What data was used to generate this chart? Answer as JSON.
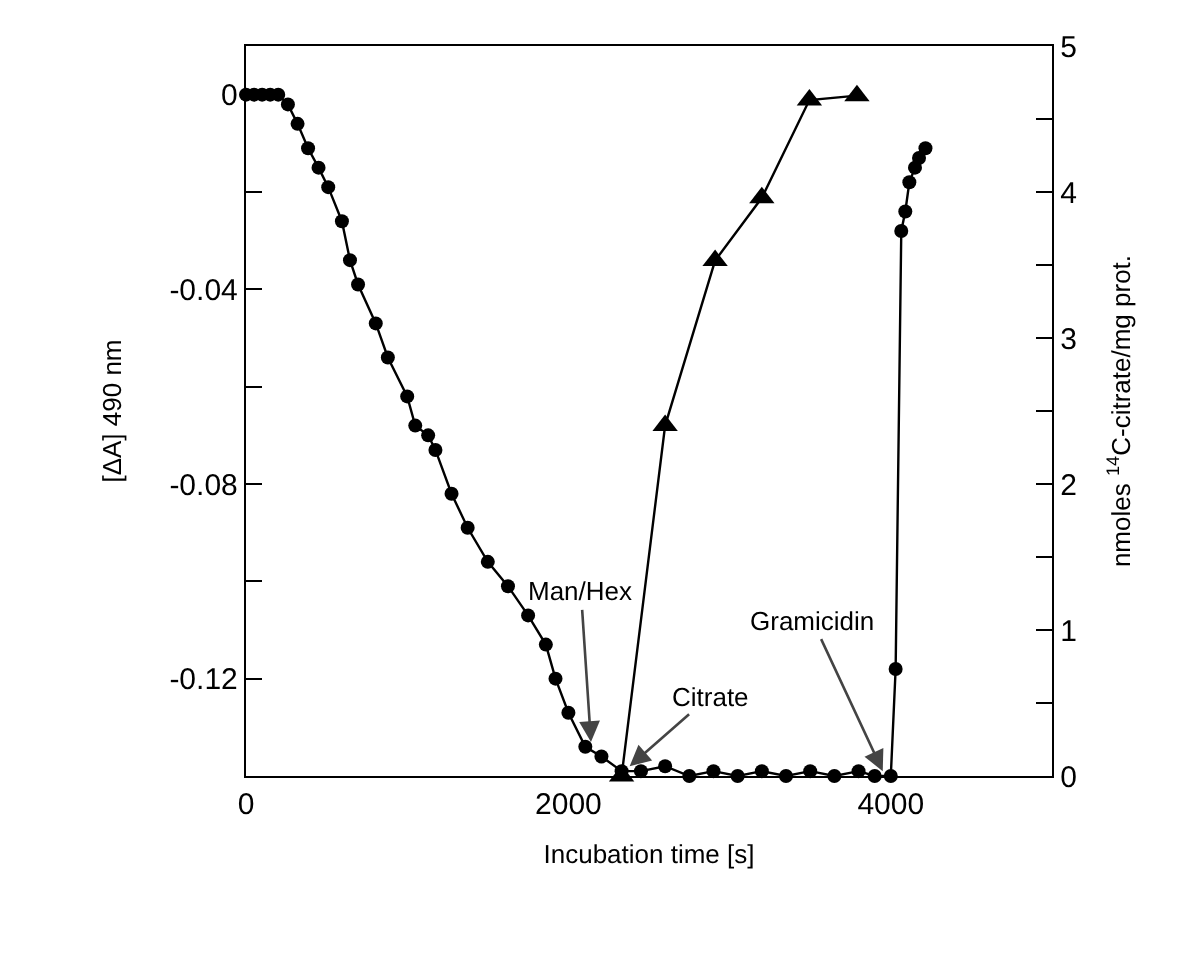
{
  "chart_data": {
    "type": "line",
    "xlabel": "Incubation time [s]",
    "ylabel": "[ΔA] 490 nm",
    "y2label": "nmoles $^{14}$C-citrate/mg prot.",
    "xlim": [
      0,
      5000
    ],
    "xticks": [
      0,
      2000,
      4000
    ],
    "ylim": [
      -0.14,
      0.01
    ],
    "yticks": [
      0,
      {
        "value": -0.02,
        "label": null
      },
      -0.04,
      {
        "value": -0.06,
        "label": null
      },
      -0.08,
      {
        "value": -0.1,
        "label": null
      },
      -0.12,
      {
        "value": -0.14,
        "label": null
      }
    ],
    "y2lim": [
      0,
      5
    ],
    "y2ticks": [
      0,
      {
        "value": 0.5,
        "label": null
      },
      1,
      {
        "value": 1.5,
        "label": null
      },
      2,
      {
        "value": 2.5,
        "label": null
      },
      3,
      {
        "value": 3.5,
        "label": null
      },
      4,
      {
        "value": 4.5,
        "label": null
      },
      5
    ],
    "line_style": "solid",
    "series": [
      {
        "color": "#000000",
        "marker": "circle",
        "x": [
          0,
          50,
          100,
          150,
          200,
          260,
          320,
          385,
          450,
          510,
          595,
          645,
          695,
          805,
          880,
          1000,
          1050,
          1130,
          1175,
          1275,
          1375,
          1500,
          1625,
          1750,
          1860,
          1920,
          2000,
          2105,
          2205,
          2330,
          2450,
          2600,
          2750,
          2900,
          3050,
          3200,
          3350,
          3500,
          3650,
          3800,
          3900,
          4000,
          4030,
          4065,
          4090,
          4115,
          4150,
          4175,
          4215
        ],
        "values": [
          0,
          0,
          0,
          0,
          0,
          -0.002,
          -0.006,
          -0.011,
          -0.015,
          -0.019,
          -0.026,
          -0.034,
          -0.039,
          -0.047,
          -0.054,
          -0.062,
          -0.068,
          -0.07,
          -0.073,
          -0.082,
          -0.089,
          -0.096,
          -0.101,
          -0.107,
          -0.113,
          -0.12,
          -0.127,
          -0.134,
          -0.136,
          -0.139,
          -0.139,
          -0.138,
          -0.14,
          -0.139,
          -0.14,
          -0.139,
          -0.14,
          -0.139,
          -0.14,
          -0.139,
          -0.14,
          -0.14,
          -0.118,
          -0.028,
          -0.024,
          -0.018,
          -0.015,
          -0.013,
          -0.011
        ]
      },
      {
        "color": "#000000",
        "marker": "triangle",
        "axis": "y2",
        "x": [
          2330,
          2600,
          2910,
          3200,
          3495,
          3790
        ],
        "values": [
          0,
          2.4,
          3.53,
          3.96,
          4.63,
          4.66
        ]
      }
    ],
    "annotations": [
      {
        "text": "Man/Hex",
        "x": 2140,
        "y": -0.133
      },
      {
        "text": "Citrate",
        "x": 2380,
        "y": -0.138
      },
      {
        "text": "Gramicidin",
        "x": 3950,
        "y": -0.139
      }
    ]
  }
}
